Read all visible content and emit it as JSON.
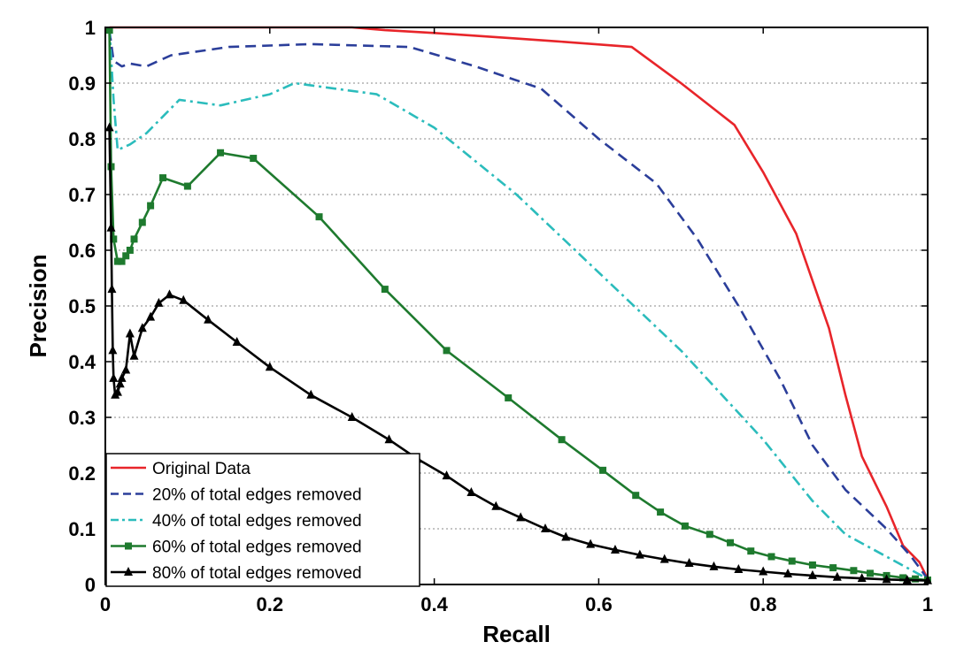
{
  "chart_data": {
    "type": "line",
    "xlabel": "Recall",
    "ylabel": "Precision",
    "xlim": [
      0,
      1
    ],
    "ylim": [
      0,
      1
    ],
    "xticks": [
      {
        "value": 0,
        "label": "0"
      },
      {
        "value": 0.2,
        "label": "0.2"
      },
      {
        "value": 0.4,
        "label": "0.4"
      },
      {
        "value": 0.6,
        "label": "0.6"
      },
      {
        "value": 0.8,
        "label": "0.8"
      },
      {
        "value": 1,
        "label": "1"
      }
    ],
    "yticks": [
      {
        "value": 0,
        "label": "0"
      },
      {
        "value": 0.1,
        "label": "0.1"
      },
      {
        "value": 0.2,
        "label": "0.2"
      },
      {
        "value": 0.3,
        "label": "0.3"
      },
      {
        "value": 0.4,
        "label": "0.4"
      },
      {
        "value": 0.5,
        "label": "0.5"
      },
      {
        "value": 0.6,
        "label": "0.6"
      },
      {
        "value": 0.7,
        "label": "0.7"
      },
      {
        "value": 0.8,
        "label": "0.8"
      },
      {
        "value": 0.9,
        "label": "0.9"
      },
      {
        "value": 1,
        "label": "1"
      }
    ],
    "grid": "horizontal dotted",
    "legend_position": "bottom-left",
    "series": [
      {
        "name": "Original Data",
        "color": "#e8252a",
        "line_style": "solid",
        "marker": "none",
        "points": [
          [
            0.005,
            1.0
          ],
          [
            0.1,
            1.0
          ],
          [
            0.2,
            1.0
          ],
          [
            0.3,
            1.0
          ],
          [
            0.34,
            0.995
          ],
          [
            0.4,
            0.99
          ],
          [
            0.5,
            0.98
          ],
          [
            0.55,
            0.975
          ],
          [
            0.64,
            0.965
          ],
          [
            0.7,
            0.9
          ],
          [
            0.765,
            0.825
          ],
          [
            0.8,
            0.74
          ],
          [
            0.84,
            0.63
          ],
          [
            0.88,
            0.46
          ],
          [
            0.9,
            0.34
          ],
          [
            0.92,
            0.23
          ],
          [
            0.95,
            0.14
          ],
          [
            0.97,
            0.07
          ],
          [
            0.99,
            0.04
          ],
          [
            1.0,
            0.01
          ]
        ]
      },
      {
        "name": "20% of total edges removed",
        "color": "#2b3e9a",
        "line_style": "dashed",
        "marker": "none",
        "points": [
          [
            0.005,
            0.995
          ],
          [
            0.01,
            0.94
          ],
          [
            0.02,
            0.93
          ],
          [
            0.03,
            0.935
          ],
          [
            0.05,
            0.93
          ],
          [
            0.08,
            0.95
          ],
          [
            0.15,
            0.965
          ],
          [
            0.25,
            0.97
          ],
          [
            0.37,
            0.965
          ],
          [
            0.45,
            0.93
          ],
          [
            0.53,
            0.89
          ],
          [
            0.6,
            0.8
          ],
          [
            0.67,
            0.72
          ],
          [
            0.72,
            0.62
          ],
          [
            0.77,
            0.5
          ],
          [
            0.82,
            0.37
          ],
          [
            0.86,
            0.25
          ],
          [
            0.9,
            0.17
          ],
          [
            0.95,
            0.1
          ],
          [
            0.98,
            0.05
          ],
          [
            1.0,
            0.01
          ]
        ]
      },
      {
        "name": "40% of total edges removed",
        "color": "#2bbcbc",
        "line_style": "dashdot",
        "marker": "none",
        "points": [
          [
            0.005,
            1.0
          ],
          [
            0.01,
            0.87
          ],
          [
            0.015,
            0.78
          ],
          [
            0.03,
            0.79
          ],
          [
            0.05,
            0.81
          ],
          [
            0.09,
            0.87
          ],
          [
            0.14,
            0.86
          ],
          [
            0.2,
            0.88
          ],
          [
            0.23,
            0.9
          ],
          [
            0.33,
            0.88
          ],
          [
            0.4,
            0.82
          ],
          [
            0.5,
            0.7
          ],
          [
            0.6,
            0.56
          ],
          [
            0.7,
            0.42
          ],
          [
            0.8,
            0.26
          ],
          [
            0.86,
            0.15
          ],
          [
            0.9,
            0.09
          ],
          [
            0.95,
            0.05
          ],
          [
            1.0,
            0.01
          ]
        ]
      },
      {
        "name": "60% of total edges removed",
        "color": "#1e7a2e",
        "line_style": "solid",
        "marker": "square",
        "points": [
          [
            0.005,
            0.995
          ],
          [
            0.007,
            0.75
          ],
          [
            0.01,
            0.62
          ],
          [
            0.015,
            0.58
          ],
          [
            0.02,
            0.58
          ],
          [
            0.025,
            0.59
          ],
          [
            0.03,
            0.6
          ],
          [
            0.035,
            0.62
          ],
          [
            0.045,
            0.65
          ],
          [
            0.055,
            0.68
          ],
          [
            0.07,
            0.73
          ],
          [
            0.1,
            0.715
          ],
          [
            0.14,
            0.775
          ],
          [
            0.18,
            0.765
          ],
          [
            0.26,
            0.66
          ],
          [
            0.34,
            0.53
          ],
          [
            0.415,
            0.42
          ],
          [
            0.49,
            0.335
          ],
          [
            0.555,
            0.26
          ],
          [
            0.605,
            0.205
          ],
          [
            0.645,
            0.16
          ],
          [
            0.675,
            0.13
          ],
          [
            0.705,
            0.105
          ],
          [
            0.735,
            0.09
          ],
          [
            0.76,
            0.075
          ],
          [
            0.785,
            0.06
          ],
          [
            0.81,
            0.05
          ],
          [
            0.835,
            0.042
          ],
          [
            0.86,
            0.035
          ],
          [
            0.885,
            0.03
          ],
          [
            0.91,
            0.025
          ],
          [
            0.93,
            0.02
          ],
          [
            0.95,
            0.016
          ],
          [
            0.97,
            0.012
          ],
          [
            0.985,
            0.01
          ],
          [
            1.0,
            0.008
          ]
        ]
      },
      {
        "name": "80% of total edges removed",
        "color": "#000000",
        "line_style": "solid",
        "marker": "triangle",
        "points": [
          [
            0.005,
            0.82
          ],
          [
            0.007,
            0.64
          ],
          [
            0.008,
            0.53
          ],
          [
            0.009,
            0.42
          ],
          [
            0.01,
            0.37
          ],
          [
            0.012,
            0.34
          ],
          [
            0.015,
            0.345
          ],
          [
            0.018,
            0.36
          ],
          [
            0.02,
            0.37
          ],
          [
            0.025,
            0.385
          ],
          [
            0.03,
            0.45
          ],
          [
            0.035,
            0.41
          ],
          [
            0.045,
            0.46
          ],
          [
            0.055,
            0.48
          ],
          [
            0.065,
            0.505
          ],
          [
            0.078,
            0.52
          ],
          [
            0.095,
            0.51
          ],
          [
            0.125,
            0.475
          ],
          [
            0.16,
            0.435
          ],
          [
            0.2,
            0.39
          ],
          [
            0.25,
            0.34
          ],
          [
            0.3,
            0.3
          ],
          [
            0.345,
            0.26
          ],
          [
            0.38,
            0.225
          ],
          [
            0.415,
            0.195
          ],
          [
            0.445,
            0.165
          ],
          [
            0.475,
            0.14
          ],
          [
            0.505,
            0.12
          ],
          [
            0.535,
            0.1
          ],
          [
            0.56,
            0.085
          ],
          [
            0.59,
            0.072
          ],
          [
            0.62,
            0.062
          ],
          [
            0.65,
            0.053
          ],
          [
            0.68,
            0.045
          ],
          [
            0.71,
            0.038
          ],
          [
            0.74,
            0.032
          ],
          [
            0.77,
            0.027
          ],
          [
            0.8,
            0.023
          ],
          [
            0.83,
            0.019
          ],
          [
            0.86,
            0.016
          ],
          [
            0.89,
            0.013
          ],
          [
            0.92,
            0.011
          ],
          [
            0.95,
            0.009
          ],
          [
            0.975,
            0.008
          ],
          [
            1.0,
            0.007
          ]
        ]
      }
    ]
  }
}
